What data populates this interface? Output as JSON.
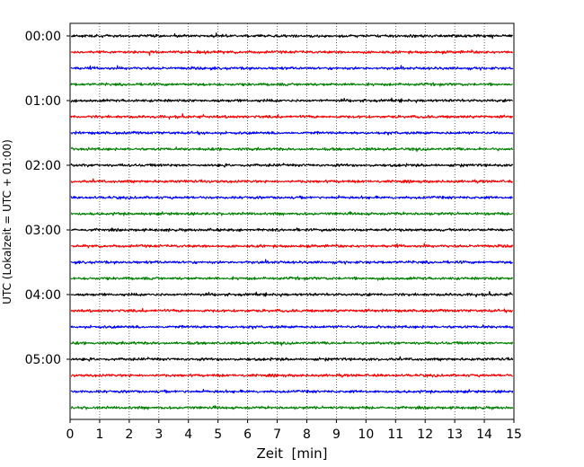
{
  "chart_data": {
    "type": "line",
    "title": "",
    "xlabel": "Zeit  [min]",
    "ylabel": "UTC (Lokalzeit = UTC + 01:00)",
    "xlim": [
      0,
      15
    ],
    "x_ticks": [
      "0",
      "1",
      "2",
      "3",
      "4",
      "5",
      "6",
      "7",
      "8",
      "9",
      "10",
      "11",
      "12",
      "13",
      "14",
      "15"
    ],
    "y_tick_labels": [
      "00:00",
      "01:00",
      "02:00",
      "03:00",
      "04:00",
      "05:00"
    ],
    "trace_interval_min": 15,
    "trace_count": 24,
    "trace_colors": [
      "#000000",
      "#ff0000",
      "#0000ff",
      "#008000"
    ],
    "grid": "vertical dotted at each minute"
  }
}
